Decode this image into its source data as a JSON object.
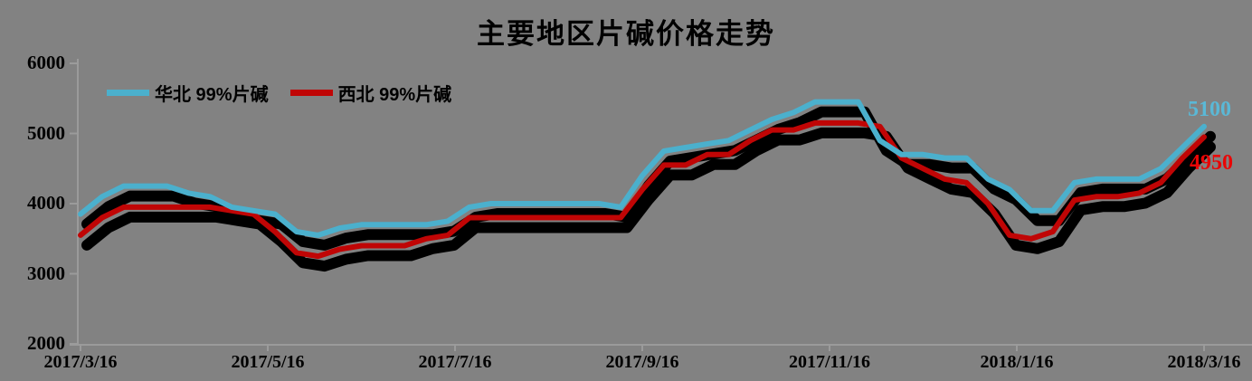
{
  "chart_data": {
    "type": "line",
    "title": "主要地区片碱价格走势",
    "background_color": "#828282",
    "axis_color": "#9B9B9B",
    "legend_position": "top-left",
    "grid": false,
    "x_axis": {
      "tick_labels": [
        "2017/3/16",
        "2017/5/16",
        "2017/7/16",
        "2017/9/16",
        "2017/11/16",
        "2018/1/16",
        "2018/3/16"
      ],
      "unit": "week",
      "points_per_series": 53
    },
    "y_axis": {
      "min": 2000,
      "max": 6000,
      "tick_interval": 1000,
      "tick_labels": [
        "6000",
        "5000",
        "4000",
        "3000",
        "2000"
      ]
    },
    "style": {
      "line_shadow": true,
      "shadow_color": "#000000"
    },
    "series": [
      {
        "name": "华北 99%片碱",
        "color": "#4BB0CD",
        "end_label": "5100",
        "end_label_color": "#5AB8D6",
        "values": [
          3850,
          4100,
          4250,
          4250,
          4250,
          4150,
          4100,
          3950,
          3900,
          3850,
          3600,
          3550,
          3650,
          3700,
          3700,
          3700,
          3700,
          3750,
          3950,
          4000,
          4000,
          4000,
          4000,
          4000,
          4000,
          3950,
          4400,
          4750,
          4800,
          4850,
          4900,
          5050,
          5200,
          5300,
          5450,
          5450,
          5450,
          4900,
          4700,
          4700,
          4650,
          4650,
          4350,
          4200,
          3900,
          3900,
          4300,
          4350,
          4350,
          4350,
          4500,
          4800,
          5100
        ]
      },
      {
        "name": "西北 99%片碱",
        "color": "#C00505",
        "end_label": "4950",
        "end_label_color": "#EA0505",
        "values": [
          3550,
          3800,
          3950,
          3950,
          3950,
          3950,
          3950,
          3900,
          3850,
          3600,
          3300,
          3250,
          3350,
          3400,
          3400,
          3400,
          3500,
          3550,
          3800,
          3800,
          3800,
          3800,
          3800,
          3800,
          3800,
          3800,
          4200,
          4550,
          4550,
          4700,
          4700,
          4900,
          5050,
          5050,
          5150,
          5150,
          5150,
          5100,
          4650,
          4500,
          4350,
          4300,
          4000,
          3550,
          3500,
          3600,
          4050,
          4100,
          4100,
          4150,
          4300,
          4650,
          4950
        ]
      }
    ]
  }
}
